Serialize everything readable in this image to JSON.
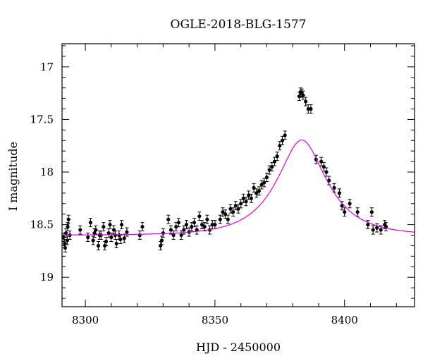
{
  "chart_data": {
    "type": "scatter",
    "title": "OGLE-2018-BLG-1577",
    "xlabel": "HJD - 2450000",
    "ylabel": "I magnitude",
    "xlim": [
      8291,
      8427
    ],
    "ylim": [
      19.28,
      16.78
    ],
    "y_inverted": true,
    "grid": false,
    "legend": "none",
    "x_ticks": [
      8300,
      8350,
      8400
    ],
    "x_tick_labels": [
      "8300",
      "8350",
      "8400"
    ],
    "y_ticks": [
      17,
      17.5,
      18,
      18.5,
      19
    ],
    "y_tick_labels": [
      "17",
      "17.5",
      "18",
      "18.5",
      "19"
    ],
    "colors": {
      "data": "#000000",
      "model": "#e000e0",
      "frame": "#000000"
    },
    "series": [
      {
        "type": "scatter_errorbars",
        "x": [
          8291.5,
          8292.0,
          8292.5,
          8293.0,
          8293.5,
          8294.0,
          8292.2,
          8293.2,
          8298.0,
          8301.0,
          8302.0,
          8303.0,
          8304.0,
          8305.0,
          8306.0,
          8307.0,
          8308.0,
          8309.0,
          8310.0,
          8311.0,
          8312.0,
          8313.0,
          8314.0,
          8315.0,
          8303.5,
          8305.5,
          8307.5,
          8309.5,
          8311.5,
          8313.5,
          8316.0,
          8321.0,
          8322.0,
          8329.0,
          8329.5,
          8330.0,
          8332.0,
          8333.0,
          8334.0,
          8335.0,
          8336.0,
          8337.0,
          8338.0,
          8339.0,
          8340.0,
          8341.0,
          8342.0,
          8343.0,
          8344.0,
          8345.0,
          8346.0,
          8347.0,
          8348.0,
          8349.0,
          8350.0,
          8352.0,
          8353.0,
          8354.0,
          8355.0,
          8356.0,
          8357.0,
          8358.0,
          8359.0,
          8360.0,
          8361.0,
          8362.0,
          8363.0,
          8364.0,
          8365.0,
          8366.0,
          8367.0,
          8368.0,
          8369.0,
          8370.0,
          8371.0,
          8372.0,
          8373.0,
          8374.0,
          8375.0,
          8376.0,
          8377.0,
          8382.5,
          8383.0,
          8383.5,
          8384.0,
          8385.0,
          8386.0,
          8387.0,
          8389.0,
          8391.0,
          8392.0,
          8393.0,
          8394.0,
          8396.0,
          8398.0,
          8399.0,
          8400.0,
          8402.0,
          8405.0,
          8409.0,
          8410.5,
          8411.0,
          8412.5,
          8414.0,
          8415.5,
          8416.0
        ],
        "y": [
          18.62,
          18.68,
          18.58,
          18.65,
          18.45,
          18.6,
          18.72,
          18.52,
          18.55,
          18.62,
          18.48,
          18.65,
          18.55,
          18.7,
          18.6,
          18.52,
          18.66,
          18.58,
          18.62,
          18.55,
          18.68,
          18.6,
          18.5,
          18.63,
          18.58,
          18.6,
          18.7,
          18.5,
          18.6,
          18.64,
          18.57,
          18.6,
          18.52,
          18.7,
          18.65,
          18.58,
          18.45,
          18.55,
          18.6,
          18.52,
          18.48,
          18.6,
          18.55,
          18.5,
          18.57,
          18.52,
          18.48,
          18.55,
          18.42,
          18.5,
          18.52,
          18.45,
          18.55,
          18.5,
          18.5,
          18.45,
          18.38,
          18.4,
          18.45,
          18.35,
          18.38,
          18.32,
          18.35,
          18.3,
          18.25,
          18.28,
          18.22,
          18.25,
          18.15,
          18.2,
          18.18,
          18.12,
          18.1,
          18.05,
          17.98,
          17.95,
          17.9,
          17.85,
          17.75,
          17.7,
          17.65,
          17.28,
          17.24,
          17.25,
          17.27,
          17.33,
          17.4,
          17.4,
          17.88,
          17.9,
          17.95,
          18.0,
          18.08,
          18.15,
          18.2,
          18.32,
          18.38,
          18.3,
          18.38,
          18.5,
          18.38,
          18.55,
          18.53,
          18.55,
          18.5,
          18.52
        ],
        "yerr": 0.04
      },
      {
        "type": "line",
        "name": "",
        "model": "PSPL",
        "params": {
          "t0": 8383.5,
          "tE": 17.0,
          "u0": 0.47,
          "I_base": 18.6
        }
      }
    ]
  }
}
